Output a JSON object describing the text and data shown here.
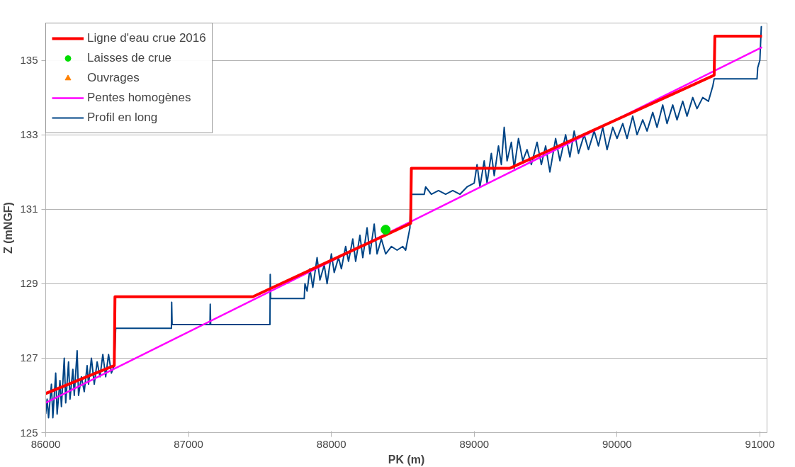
{
  "chart_data": {
    "type": "line",
    "xlabel": "PK (m)",
    "ylabel": "Z (mNGF)",
    "xlim": [
      86000,
      91050
    ],
    "ylim": [
      125,
      136
    ],
    "xticks": [
      86000,
      87000,
      88000,
      89000,
      90000,
      91000
    ],
    "yticks": [
      125,
      127,
      129,
      131,
      133,
      135
    ],
    "grid": "y",
    "legend": "top left",
    "series": [
      {
        "name": "Ligne d'eau crue 2016",
        "color": "#ff0000",
        "x": [
          86000,
          86480,
          86485,
          87450,
          88555,
          88560,
          89250,
          90680,
          90685,
          91015
        ],
        "values": [
          126.05,
          126.8,
          128.65,
          128.65,
          130.62,
          132.1,
          132.1,
          134.6,
          135.65,
          135.65
        ]
      },
      {
        "name": "Laisses de crue",
        "color": "#00dd00",
        "type": "scatter",
        "marker": "circle",
        "x": [
          88380
        ],
        "values": [
          130.45
        ]
      },
      {
        "name": "Ouvrages",
        "color": "#ff8000",
        "type": "scatter",
        "marker": "triangle"
      },
      {
        "name": "Pentes homogènes",
        "color": "#ff00ff",
        "x": [
          86000,
          91015
        ],
        "values": [
          125.8,
          135.35
        ]
      },
      {
        "name": "Profil en long",
        "color": "#004586",
        "x": [
          86000,
          86010,
          86020,
          86040,
          86050,
          86070,
          86080,
          86100,
          86110,
          86130,
          86140,
          86160,
          86170,
          86190,
          86200,
          86220,
          86230,
          86250,
          86270,
          86290,
          86300,
          86320,
          86340,
          86360,
          86380,
          86400,
          86420,
          86440,
          86460,
          86480,
          86490,
          86880,
          86882,
          86885,
          87150,
          87152,
          87155,
          87570,
          87572,
          87575,
          87810,
          87815,
          87830,
          87850,
          87870,
          87900,
          87920,
          87950,
          87970,
          88000,
          88020,
          88050,
          88070,
          88100,
          88120,
          88150,
          88170,
          88200,
          88220,
          88250,
          88270,
          88300,
          88320,
          88350,
          88380,
          88420,
          88460,
          88500,
          88520,
          88540,
          88550,
          88555,
          88650,
          88660,
          88700,
          88750,
          88800,
          88850,
          88900,
          88950,
          89000,
          89020,
          89040,
          89070,
          89090,
          89120,
          89140,
          89170,
          89190,
          89210,
          89230,
          89260,
          89280,
          89310,
          89340,
          89370,
          89400,
          89440,
          89470,
          89500,
          89530,
          89570,
          89600,
          89640,
          89670,
          89700,
          89730,
          89770,
          89800,
          89840,
          89870,
          89900,
          89930,
          89970,
          90000,
          90040,
          90070,
          90110,
          90140,
          90180,
          90210,
          90250,
          90280,
          90320,
          90350,
          90390,
          90420,
          90460,
          90490,
          90530,
          90560,
          90600,
          90640,
          90670,
          90680,
          90980,
          90985,
          91000,
          91010,
          91015
        ],
        "values": [
          125.5,
          125.9,
          125.4,
          126.3,
          125.4,
          126.6,
          125.5,
          126.4,
          125.7,
          127.0,
          125.8,
          126.9,
          125.9,
          126.7,
          126.0,
          127.2,
          126.0,
          126.5,
          126.1,
          126.8,
          126.3,
          127.0,
          126.3,
          126.9,
          126.5,
          127.1,
          126.5,
          127.1,
          126.6,
          126.8,
          127.8,
          127.8,
          128.5,
          127.9,
          127.9,
          128.45,
          127.9,
          127.9,
          129.25,
          128.6,
          128.6,
          129.0,
          128.8,
          129.4,
          128.9,
          129.7,
          129.1,
          129.5,
          129.0,
          129.8,
          129.3,
          129.7,
          129.4,
          130.0,
          129.6,
          130.2,
          129.6,
          130.3,
          129.7,
          130.5,
          129.8,
          130.6,
          129.8,
          130.2,
          129.8,
          130.0,
          129.9,
          130.0,
          129.9,
          130.3,
          130.5,
          131.4,
          131.4,
          131.6,
          131.4,
          131.5,
          131.4,
          131.5,
          131.4,
          131.6,
          131.7,
          132.2,
          131.6,
          132.3,
          131.7,
          132.5,
          131.9,
          132.7,
          132.2,
          133.2,
          132.3,
          132.8,
          132.1,
          132.9,
          132.3,
          132.6,
          132.2,
          132.8,
          132.2,
          132.7,
          132.0,
          132.9,
          132.3,
          133.0,
          132.4,
          133.1,
          132.5,
          133.0,
          132.6,
          133.1,
          132.7,
          133.2,
          132.6,
          133.2,
          132.9,
          133.3,
          132.9,
          133.5,
          133.0,
          133.4,
          133.1,
          133.6,
          133.2,
          133.8,
          133.3,
          133.8,
          133.4,
          133.9,
          133.5,
          134.0,
          133.7,
          134.0,
          133.9,
          134.3,
          134.5,
          134.5,
          134.8,
          135.0,
          135.9,
          135.9
        ]
      }
    ]
  }
}
